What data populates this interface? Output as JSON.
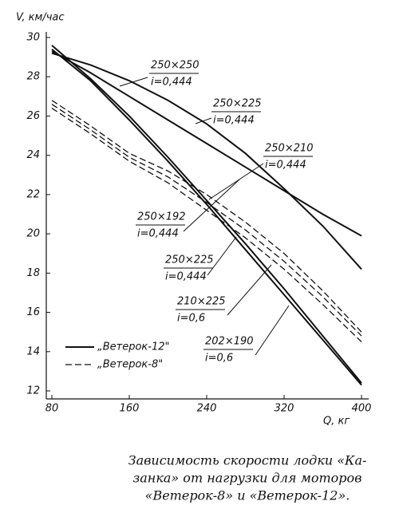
{
  "chart_data": {
    "type": "line",
    "y_label": "V, км/час",
    "x_label": "Q, кг",
    "x": [
      80,
      120,
      160,
      200,
      240,
      280,
      320,
      360,
      400
    ],
    "xlim": [
      80,
      400
    ],
    "xticks": [
      80,
      160,
      240,
      320,
      400
    ],
    "ylim": [
      12,
      30
    ],
    "yticks": [
      12,
      14,
      16,
      18,
      20,
      22,
      24,
      26,
      28,
      30
    ],
    "series": [
      {
        "name": "250×250",
        "note": "i=0,444",
        "dash": false,
        "color": "#111",
        "values": [
          29.3,
          28.2,
          27.0,
          25.8,
          24.6,
          23.4,
          22.2,
          21.0,
          19.9
        ]
      },
      {
        "name": "250×225",
        "note": "i=0,444",
        "dash": false,
        "color": "#111",
        "values": [
          29.2,
          28.6,
          27.8,
          26.8,
          25.6,
          24.1,
          22.3,
          20.4,
          18.2
        ]
      },
      {
        "name": "250×210",
        "note": "i=0,444",
        "dash": false,
        "color": "#111",
        "values": [
          29.6,
          27.9,
          26.0,
          23.9,
          21.7,
          19.5,
          17.2,
          14.8,
          12.4
        ]
      },
      {
        "name": "250×192",
        "note": "i=0,444",
        "dash": false,
        "color": "#111",
        "values": [
          29.4,
          27.8,
          25.8,
          23.7,
          21.5,
          19.2,
          16.9,
          14.6,
          12.3
        ]
      },
      {
        "name": "250×225",
        "note": "i=0,444",
        "dash": true,
        "color": "#111",
        "values": [
          26.8,
          25.5,
          24.1,
          23.2,
          22.0,
          20.6,
          19.0,
          17.1,
          15.0
        ]
      },
      {
        "name": "210×225",
        "note": "i=0,6",
        "dash": true,
        "color": "#111",
        "values": [
          26.6,
          25.3,
          23.9,
          22.9,
          21.6,
          20.2,
          18.6,
          16.8,
          14.8
        ]
      },
      {
        "name": "202×190",
        "note": "i=0,6",
        "dash": true,
        "color": "#111",
        "values": [
          26.4,
          25.1,
          23.7,
          22.6,
          21.2,
          19.8,
          18.2,
          16.4,
          14.5
        ]
      }
    ],
    "legend": [
      {
        "label": "„Ветерок-12\"",
        "dash": false
      },
      {
        "label": "„Ветерок-8\"",
        "dash": true
      }
    ],
    "caption": [
      "Зависимость скорости лодки «Ка-",
      "занка» от нагрузки для моторов",
      "«Ветерок-8» и «Ветерок-12»."
    ]
  }
}
